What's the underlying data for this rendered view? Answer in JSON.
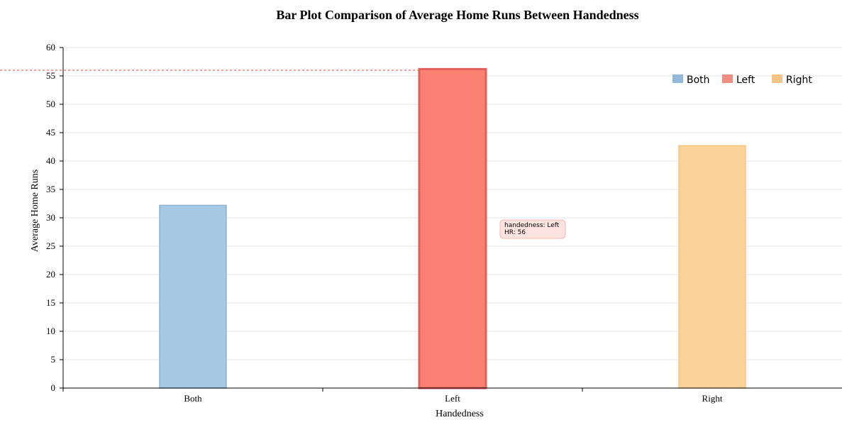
{
  "chart_data": {
    "type": "bar",
    "title": "Bar Plot Comparison of Average Home Runs Between Handedness",
    "xlabel": "Handedness",
    "ylabel": "Average Home Runs",
    "categories": [
      "Both",
      "Left",
      "Right"
    ],
    "values": [
      32.2,
      56.2,
      42.7
    ],
    "colors": [
      "#a6c8e4",
      "#fa8072",
      "#fbd39a"
    ],
    "highlight_colors": [
      "#8fb6d9",
      "#e0605a",
      "#f5c27a"
    ],
    "highlighted_category": "Left",
    "ylim": [
      0,
      60
    ],
    "yticks": [
      0,
      5,
      10,
      15,
      20,
      25,
      30,
      35,
      40,
      45,
      50,
      55,
      60
    ],
    "grid": true,
    "legend": {
      "placement": "top-right",
      "entries": [
        {
          "label": "Both",
          "color": "#93b8d8"
        },
        {
          "label": "Left",
          "color": "#f18c80"
        },
        {
          "label": "Right",
          "color": "#f7c487"
        }
      ]
    },
    "reference_line": {
      "value": 56,
      "color": "#f08080"
    },
    "tooltip": {
      "line1": "handedness: Left",
      "line2": "HR: 56"
    }
  }
}
